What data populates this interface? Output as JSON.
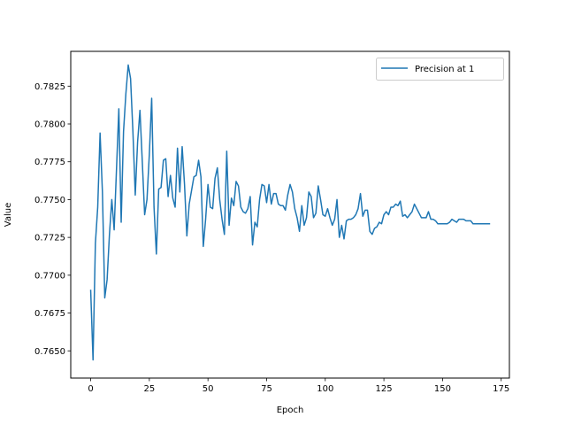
{
  "chart_data": {
    "type": "line",
    "title": "",
    "xlabel": "Epoch",
    "ylabel": "Value",
    "xlim": [
      -8.5,
      178.5
    ],
    "ylim": [
      0.7632,
      0.7848
    ],
    "xticks": [
      0,
      25,
      50,
      75,
      100,
      125,
      150,
      175
    ],
    "yticks": [
      0.765,
      0.7675,
      0.77,
      0.7725,
      0.775,
      0.7775,
      0.78,
      0.7825
    ],
    "ytick_labels": [
      "0.7650",
      "0.7675",
      "0.7700",
      "0.7725",
      "0.7750",
      "0.7775",
      "0.7800",
      "0.7825"
    ],
    "grid": false,
    "legend_position": "top-right",
    "series": [
      {
        "name": "Precision at 1",
        "color": "#1f77b4",
        "x": [
          0,
          1,
          2,
          3,
          4,
          5,
          6,
          7,
          8,
          9,
          10,
          11,
          12,
          13,
          14,
          15,
          16,
          17,
          18,
          19,
          20,
          21,
          22,
          23,
          24,
          25,
          26,
          27,
          28,
          29,
          30,
          31,
          32,
          33,
          34,
          35,
          36,
          37,
          38,
          39,
          40,
          41,
          42,
          43,
          44,
          45,
          46,
          47,
          48,
          49,
          50,
          51,
          52,
          53,
          54,
          55,
          56,
          57,
          58,
          59,
          60,
          61,
          62,
          63,
          64,
          65,
          66,
          67,
          68,
          69,
          70,
          71,
          72,
          73,
          74,
          75,
          76,
          77,
          78,
          79,
          80,
          81,
          82,
          83,
          84,
          85,
          86,
          87,
          88,
          89,
          90,
          91,
          92,
          93,
          94,
          95,
          96,
          97,
          98,
          99,
          100,
          101,
          102,
          103,
          104,
          105,
          106,
          107,
          108,
          109,
          110,
          111,
          112,
          113,
          114,
          115,
          116,
          117,
          118,
          119,
          120,
          121,
          122,
          123,
          124,
          125,
          126,
          127,
          128,
          129,
          130,
          131,
          132,
          133,
          134,
          135,
          136,
          137,
          138,
          139,
          140,
          141,
          142,
          143,
          144,
          145,
          146,
          147,
          148,
          149,
          150,
          151,
          152,
          153,
          154,
          155,
          156,
          157,
          158,
          159,
          160,
          161,
          162,
          163,
          164,
          165,
          166,
          167,
          168,
          169,
          170
        ],
        "values": [
          0.769,
          0.7644,
          0.7721,
          0.7745,
          0.7794,
          0.7755,
          0.7685,
          0.7697,
          0.7727,
          0.775,
          0.773,
          0.777,
          0.781,
          0.7735,
          0.7795,
          0.782,
          0.7839,
          0.783,
          0.7795,
          0.7753,
          0.7788,
          0.7809,
          0.7775,
          0.774,
          0.775,
          0.778,
          0.7817,
          0.7745,
          0.7714,
          0.7757,
          0.7758,
          0.7776,
          0.7777,
          0.7752,
          0.7766,
          0.7751,
          0.7745,
          0.7784,
          0.7755,
          0.7785,
          0.776,
          0.7726,
          0.7747,
          0.7756,
          0.7765,
          0.7766,
          0.7776,
          0.7765,
          0.7719,
          0.7737,
          0.776,
          0.7745,
          0.7744,
          0.7764,
          0.7771,
          0.775,
          0.7737,
          0.7727,
          0.7782,
          0.7733,
          0.7751,
          0.7746,
          0.7762,
          0.7759,
          0.7745,
          0.7742,
          0.7741,
          0.7744,
          0.7752,
          0.772,
          0.7735,
          0.7732,
          0.775,
          0.776,
          0.7759,
          0.7748,
          0.776,
          0.7747,
          0.7754,
          0.7754,
          0.7747,
          0.7746,
          0.7746,
          0.7743,
          0.7753,
          0.776,
          0.7755,
          0.7744,
          0.7738,
          0.7729,
          0.7746,
          0.7733,
          0.7738,
          0.7755,
          0.7752,
          0.7738,
          0.7741,
          0.7759,
          0.775,
          0.774,
          0.7739,
          0.7744,
          0.7738,
          0.7733,
          0.7737,
          0.775,
          0.7725,
          0.7733,
          0.7724,
          0.7736,
          0.7737,
          0.7737,
          0.7738,
          0.774,
          0.7744,
          0.7754,
          0.7739,
          0.7743,
          0.7743,
          0.7729,
          0.7727,
          0.7731,
          0.7732,
          0.7735,
          0.7734,
          0.774,
          0.7742,
          0.774,
          0.7745,
          0.7745,
          0.7747,
          0.7746,
          0.7749,
          0.7739,
          0.774,
          0.7738,
          0.774,
          0.7742,
          0.7747,
          0.7744,
          0.7741,
          0.7738,
          0.7738,
          0.7738,
          0.7742,
          0.7737,
          0.7737,
          0.7736,
          0.7734,
          0.7734,
          0.7734,
          0.7734,
          0.7734,
          0.7735,
          0.7737,
          0.7736,
          0.7735,
          0.7737,
          0.7737,
          0.7737,
          0.7736,
          0.7736,
          0.7736,
          0.7734,
          0.7734,
          0.7734,
          0.7734,
          0.7734,
          0.7734,
          0.7734,
          0.7734
        ]
      }
    ]
  }
}
